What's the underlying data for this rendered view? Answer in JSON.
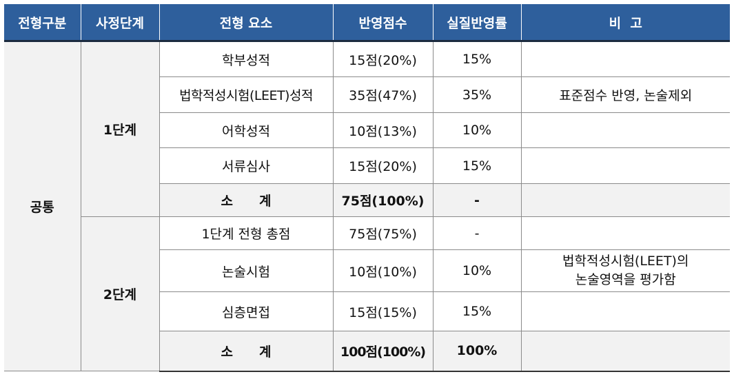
{
  "table": {
    "headers": [
      "전형구분",
      "사정단계",
      "전형 요소",
      "반영점수",
      "실질반영률",
      "비  고"
    ],
    "group": "공통",
    "stage1": {
      "label": "1단계",
      "rows": [
        {
          "element": "학부성적",
          "score": "15점(20%)",
          "rate": "15%",
          "note": ""
        },
        {
          "element": "법학적성시험(LEET)성적",
          "score": "35점(47%)",
          "rate": "35%",
          "note": "표준점수 반영, 논술제외"
        },
        {
          "element": "어학성적",
          "score": "10점(13%)",
          "rate": "10%",
          "note": ""
        },
        {
          "element": "서류심사",
          "score": "15점(20%)",
          "rate": "15%",
          "note": ""
        }
      ],
      "subtotal": {
        "label_a": "소",
        "label_b": "계",
        "score": "75점(100%)",
        "rate": "-",
        "note": ""
      }
    },
    "stage2": {
      "label": "2단계",
      "rows": [
        {
          "element": "1단계 전형 총점",
          "score": "75점(75%)",
          "rate": "-",
          "note": ""
        },
        {
          "element": "논술시험",
          "score": "10점(10%)",
          "rate": "10%",
          "note_line1": "법학적성시험(LEET)의",
          "note_line2": "논술영역을 평가함"
        },
        {
          "element": "심층면접",
          "score": "15점(15%)",
          "rate": "15%",
          "note": ""
        }
      ],
      "subtotal": {
        "label_a": "소",
        "label_b": "계",
        "score": "100점(100%)",
        "rate": "100%",
        "note": ""
      }
    }
  }
}
